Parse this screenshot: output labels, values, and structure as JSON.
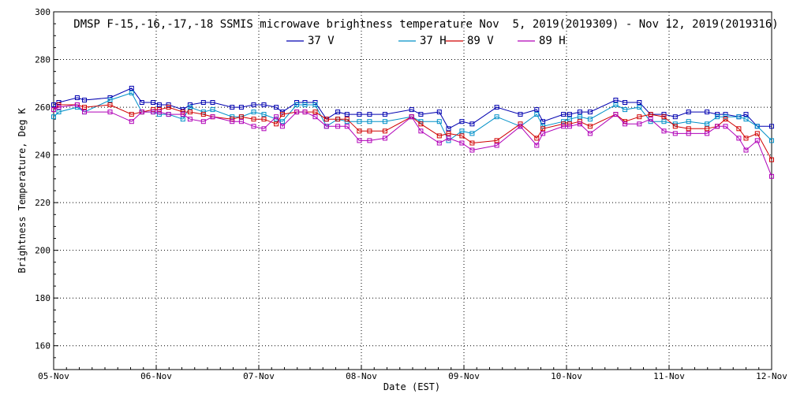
{
  "chart_data": {
    "type": "line",
    "title": "DMSP F-15,-16,-17,-18 SSMIS microwave brightness temperature Nov  5, 2019(2019309) - Nov 12, 2019(2019316)",
    "xlabel": "Date (EST)",
    "ylabel": "Brightness Temperature, Deg K",
    "ylim": [
      150,
      300
    ],
    "yticks": [
      160,
      180,
      200,
      220,
      240,
      260,
      280,
      300
    ],
    "xlim": [
      0,
      7
    ],
    "xticks": [
      0,
      1,
      2,
      3,
      4,
      5,
      6,
      7
    ],
    "xtick_labels": [
      "05-Nov",
      "06-Nov",
      "07-Nov",
      "08-Nov",
      "09-Nov",
      "10-Nov",
      "11-Nov",
      "12-Nov"
    ],
    "grid": true,
    "x_units": "days since 05-Nov 00:00 EST",
    "x": [
      0.0,
      0.05,
      0.23,
      0.3,
      0.55,
      0.76,
      0.86,
      0.97,
      1.03,
      1.12,
      1.26,
      1.33,
      1.46,
      1.55,
      1.74,
      1.83,
      1.95,
      2.05,
      2.17,
      2.23,
      2.37,
      2.45,
      2.55,
      2.66,
      2.77,
      2.86,
      2.98,
      3.08,
      3.23,
      3.49,
      3.58,
      3.76,
      3.85,
      3.98,
      4.08,
      4.32,
      4.55,
      4.71,
      4.77,
      4.97,
      5.03,
      5.13,
      5.23,
      5.48,
      5.57,
      5.71,
      5.82,
      5.95,
      6.06,
      6.19,
      6.37,
      6.47,
      6.55,
      6.68,
      6.75,
      6.86,
      7.0
    ],
    "series": [
      {
        "name": "37 V",
        "color": "#0000b0",
        "values": [
          261,
          262,
          264,
          263,
          264,
          268,
          262,
          262,
          261,
          261,
          259,
          261,
          262,
          262,
          260,
          260,
          261,
          261,
          260,
          258,
          262,
          262,
          262,
          255,
          258,
          257,
          257,
          257,
          257,
          259,
          257,
          258,
          251,
          254,
          253,
          260,
          257,
          259,
          254,
          257,
          257,
          258,
          258,
          263,
          262,
          262,
          257,
          257,
          256,
          258,
          258,
          257,
          257,
          256,
          257,
          252,
          252
        ]
      },
      {
        "name": "37 H",
        "color": "#0090c8",
        "values": [
          256,
          258,
          260,
          258,
          263,
          266,
          258,
          258,
          257,
          257,
          255,
          260,
          258,
          259,
          256,
          256,
          258,
          257,
          255,
          254,
          261,
          261,
          261,
          252,
          255,
          254,
          254,
          254,
          254,
          256,
          254,
          254,
          246,
          250,
          249,
          256,
          252,
          257,
          252,
          254,
          255,
          256,
          255,
          261,
          259,
          260,
          254,
          254,
          253,
          254,
          253,
          256,
          256,
          256,
          255,
          252,
          246
        ]
      },
      {
        "name": "89 V",
        "color": "#d00000",
        "values": [
          259,
          261,
          261,
          260,
          261,
          257,
          258,
          259,
          259,
          260,
          258,
          258,
          257,
          256,
          255,
          256,
          255,
          255,
          253,
          257,
          258,
          258,
          258,
          255,
          255,
          255,
          250,
          250,
          250,
          256,
          253,
          248,
          249,
          248,
          245,
          246,
          253,
          247,
          251,
          253,
          253,
          254,
          252,
          257,
          254,
          256,
          257,
          256,
          252,
          251,
          251,
          252,
          255,
          251,
          247,
          249,
          238
        ]
      },
      {
        "name": "89 H",
        "color": "#b000b8",
        "values": [
          259,
          260,
          261,
          258,
          258,
          254,
          258,
          258,
          258,
          257,
          257,
          255,
          254,
          256,
          254,
          254,
          252,
          251,
          256,
          252,
          258,
          258,
          256,
          252,
          252,
          252,
          246,
          246,
          247,
          256,
          250,
          245,
          247,
          245,
          242,
          244,
          252,
          244,
          249,
          252,
          252,
          253,
          249,
          257,
          253,
          253,
          255,
          250,
          249,
          249,
          249,
          252,
          252,
          247,
          242,
          246,
          231
        ]
      }
    ]
  }
}
